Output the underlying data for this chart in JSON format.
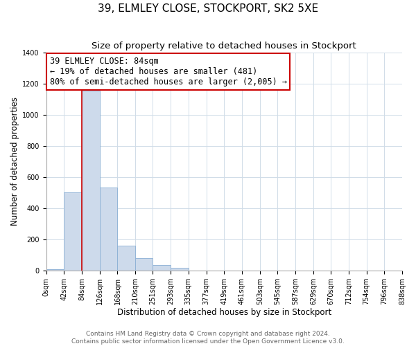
{
  "title": "39, ELMLEY CLOSE, STOCKPORT, SK2 5XE",
  "subtitle": "Size of property relative to detached houses in Stockport",
  "xlabel": "Distribution of detached houses by size in Stockport",
  "ylabel": "Number of detached properties",
  "bin_edges": [
    0,
    42,
    84,
    126,
    168,
    210,
    251,
    293,
    335,
    377,
    419,
    461,
    503,
    545,
    587,
    629,
    670,
    712,
    754,
    796,
    838
  ],
  "bar_heights": [
    10,
    500,
    1155,
    535,
    160,
    83,
    35,
    20,
    0,
    0,
    0,
    0,
    0,
    0,
    0,
    0,
    0,
    0,
    0,
    0
  ],
  "bar_color": "#cddaeb",
  "bar_edge_color": "#8aafd4",
  "property_line_x": 84,
  "property_line_color": "#cc0000",
  "annotation_line1": "39 ELMLEY CLOSE: 84sqm",
  "annotation_line2": "← 19% of detached houses are smaller (481)",
  "annotation_line3": "80% of semi-detached houses are larger (2,005) →",
  "annotation_box_color": "#ffffff",
  "annotation_box_edgecolor": "#cc0000",
  "ylim": [
    0,
    1400
  ],
  "yticks": [
    0,
    200,
    400,
    600,
    800,
    1000,
    1200,
    1400
  ],
  "tick_labels": [
    "0sqm",
    "42sqm",
    "84sqm",
    "126sqm",
    "168sqm",
    "210sqm",
    "251sqm",
    "293sqm",
    "335sqm",
    "377sqm",
    "419sqm",
    "461sqm",
    "503sqm",
    "545sqm",
    "587sqm",
    "629sqm",
    "670sqm",
    "712sqm",
    "754sqm",
    "796sqm",
    "838sqm"
  ],
  "footer1": "Contains HM Land Registry data © Crown copyright and database right 2024.",
  "footer2": "Contains public sector information licensed under the Open Government Licence v3.0.",
  "bg_color": "#ffffff",
  "grid_color": "#d0dce8",
  "title_fontsize": 11,
  "subtitle_fontsize": 9.5,
  "axis_label_fontsize": 8.5,
  "tick_fontsize": 7,
  "annotation_fontsize": 8.5,
  "footer_fontsize": 6.5
}
